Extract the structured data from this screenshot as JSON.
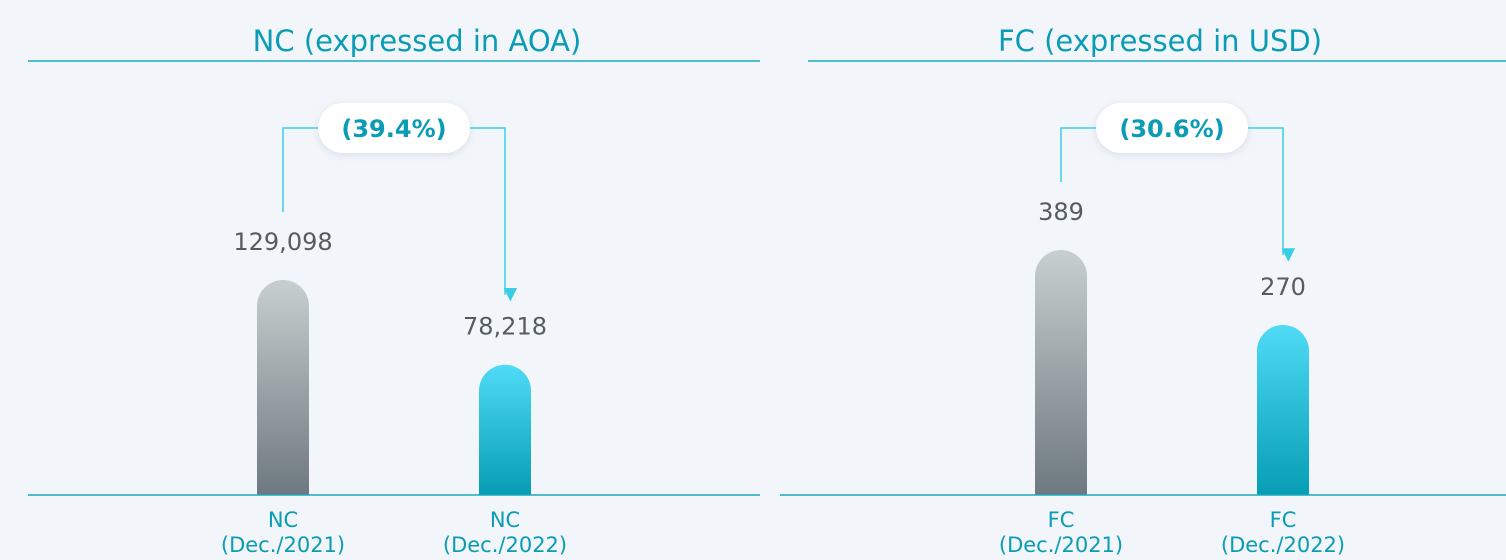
{
  "chart_data": [
    {
      "type": "bar",
      "title": "NC (expressed in AOA)",
      "categories": [
        [
          "NC",
          "(Dec./2021)"
        ],
        [
          "NC",
          "(Dec./2022)"
        ]
      ],
      "values": [
        129098,
        78218
      ],
      "value_labels": [
        "129,098",
        "78,218"
      ],
      "colors": [
        [
          "#c6d0cf",
          "#6e7880"
        ],
        [
          "#4fdbf5",
          "#069db5"
        ]
      ],
      "change_label": "(39.4%)"
    },
    {
      "type": "bar",
      "title": "FC (expressed in USD)",
      "categories": [
        [
          "FC",
          "(Dec./2021)"
        ],
        [
          "FC",
          "(Dec./2022)"
        ]
      ],
      "values": [
        389,
        270
      ],
      "value_labels": [
        "389",
        "270"
      ],
      "colors": [
        [
          "#c6d0cf",
          "#6e7880"
        ],
        [
          "#4fdbf5",
          "#069db5"
        ]
      ],
      "change_label": "(30.6%)"
    }
  ]
}
